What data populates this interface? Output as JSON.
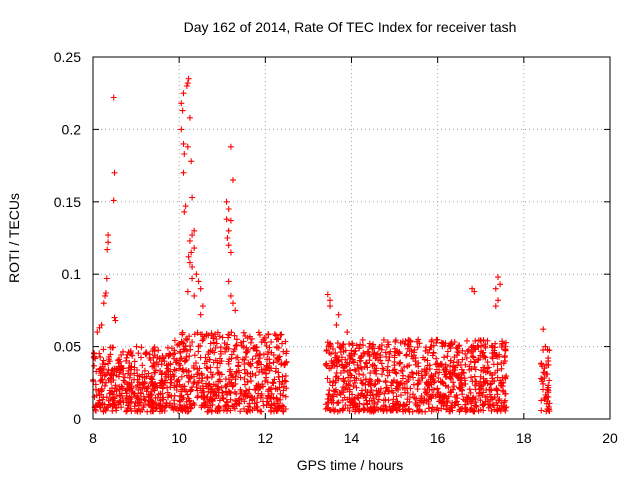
{
  "chart_data": {
    "type": "scatter",
    "title": "Day 162 of 2014, Rate Of TEC Index for receiver tash",
    "xlabel": "GPS time / hours",
    "ylabel": "ROTI / TECUs",
    "xlim": [
      8,
      20
    ],
    "ylim": [
      0,
      0.25
    ],
    "xticks": [
      "8",
      "10",
      "12",
      "14",
      "16",
      "18",
      "20"
    ],
    "xtick_values": [
      8,
      10,
      12,
      14,
      16,
      18,
      20
    ],
    "yticks": [
      "0",
      "0.05",
      "0.1",
      "0.15",
      "0.2",
      "0.25"
    ],
    "ytick_values": [
      0,
      0.05,
      0.1,
      0.15,
      0.2,
      0.25
    ],
    "grid": true,
    "marker": "+",
    "color": "#ff0000",
    "series": [
      {
        "name": "ROTI",
        "dense_bands": [
          {
            "x_start": 8.0,
            "x_end": 9.9,
            "y_low": 0.005,
            "y_high": 0.05
          },
          {
            "x_start": 9.9,
            "x_end": 12.5,
            "y_low": 0.005,
            "y_high": 0.06
          },
          {
            "x_start": 13.4,
            "x_end": 15.0,
            "y_low": 0.005,
            "y_high": 0.055
          },
          {
            "x_start": 15.0,
            "x_end": 17.6,
            "y_low": 0.005,
            "y_high": 0.055
          },
          {
            "x_start": 18.4,
            "x_end": 18.6,
            "y_low": 0.005,
            "y_high": 0.048
          }
        ],
        "points": [
          [
            8.48,
            0.222
          ],
          [
            8.5,
            0.17
          ],
          [
            8.48,
            0.151
          ],
          [
            8.35,
            0.127
          ],
          [
            8.35,
            0.122
          ],
          [
            8.33,
            0.117
          ],
          [
            8.32,
            0.097
          ],
          [
            8.3,
            0.087
          ],
          [
            8.28,
            0.085
          ],
          [
            8.25,
            0.08
          ],
          [
            8.5,
            0.07
          ],
          [
            8.52,
            0.068
          ],
          [
            8.2,
            0.065
          ],
          [
            8.15,
            0.063
          ],
          [
            8.1,
            0.06
          ],
          [
            10.22,
            0.235
          ],
          [
            10.2,
            0.232
          ],
          [
            10.18,
            0.23
          ],
          [
            10.1,
            0.225
          ],
          [
            10.05,
            0.218
          ],
          [
            10.08,
            0.213
          ],
          [
            10.25,
            0.208
          ],
          [
            10.05,
            0.2
          ],
          [
            10.1,
            0.19
          ],
          [
            10.2,
            0.188
          ],
          [
            10.12,
            0.183
          ],
          [
            10.28,
            0.178
          ],
          [
            10.1,
            0.17
          ],
          [
            10.3,
            0.153
          ],
          [
            10.15,
            0.147
          ],
          [
            10.12,
            0.143
          ],
          [
            10.35,
            0.13
          ],
          [
            10.3,
            0.127
          ],
          [
            10.25,
            0.123
          ],
          [
            10.35,
            0.118
          ],
          [
            10.28,
            0.115
          ],
          [
            10.22,
            0.112
          ],
          [
            10.25,
            0.108
          ],
          [
            10.3,
            0.105
          ],
          [
            10.4,
            0.1
          ],
          [
            10.3,
            0.097
          ],
          [
            10.45,
            0.095
          ],
          [
            10.5,
            0.09
          ],
          [
            10.2,
            0.088
          ],
          [
            10.35,
            0.085
          ],
          [
            10.55,
            0.078
          ],
          [
            10.5,
            0.072
          ],
          [
            11.2,
            0.188
          ],
          [
            11.25,
            0.165
          ],
          [
            11.1,
            0.15
          ],
          [
            11.15,
            0.145
          ],
          [
            11.1,
            0.138
          ],
          [
            11.2,
            0.137
          ],
          [
            11.15,
            0.13
          ],
          [
            11.12,
            0.125
          ],
          [
            11.15,
            0.12
          ],
          [
            11.2,
            0.115
          ],
          [
            11.15,
            0.095
          ],
          [
            11.2,
            0.085
          ],
          [
            11.25,
            0.08
          ],
          [
            11.3,
            0.075
          ],
          [
            13.45,
            0.086
          ],
          [
            13.5,
            0.082
          ],
          [
            13.5,
            0.078
          ],
          [
            13.7,
            0.072
          ],
          [
            13.65,
            0.065
          ],
          [
            13.9,
            0.06
          ],
          [
            16.8,
            0.09
          ],
          [
            16.85,
            0.088
          ],
          [
            17.4,
            0.098
          ],
          [
            17.45,
            0.093
          ],
          [
            17.35,
            0.09
          ],
          [
            17.4,
            0.082
          ],
          [
            17.35,
            0.078
          ],
          [
            18.45,
            0.062
          ],
          [
            18.5,
            0.05
          ],
          [
            18.55,
            0.048
          ]
        ]
      }
    ]
  }
}
